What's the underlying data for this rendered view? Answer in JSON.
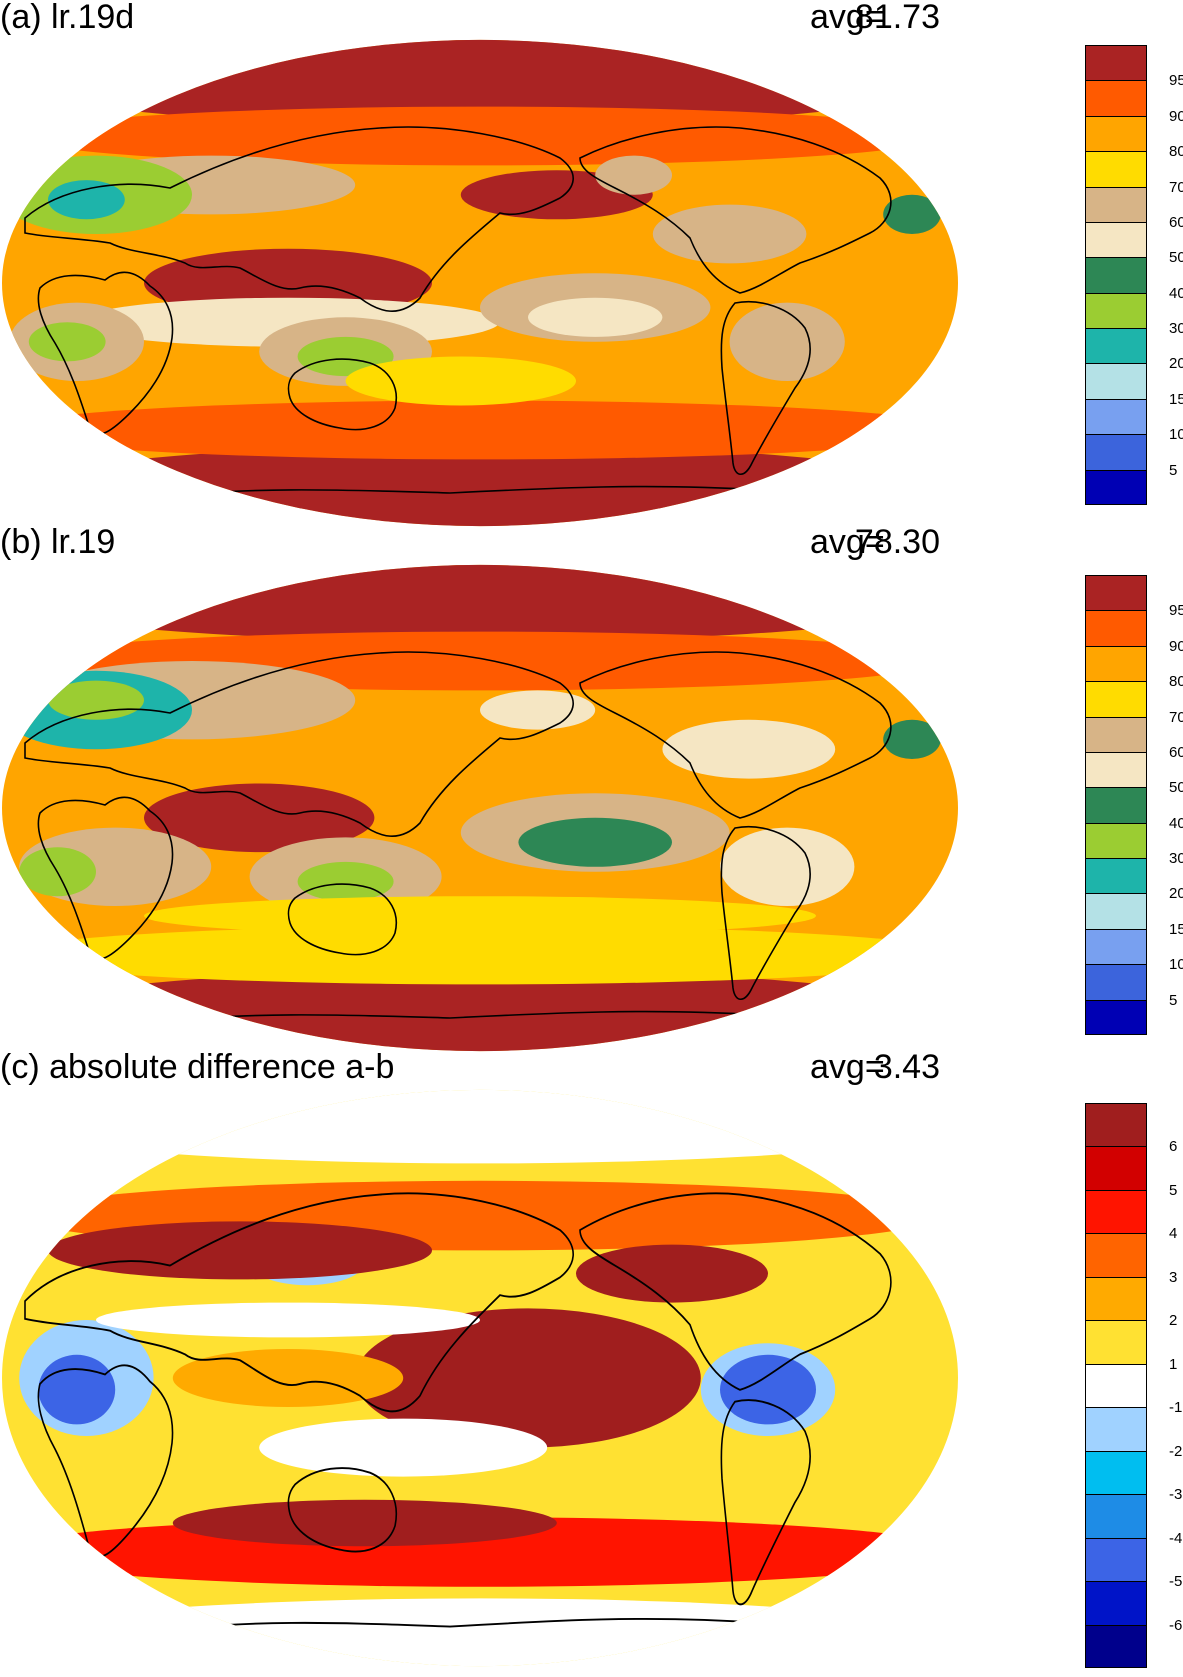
{
  "panels": [
    {
      "id": "a",
      "title": "(a) lr.19d",
      "avg_label": "avg=",
      "avg_value": "81.73",
      "colorbar": {
        "colors": [
          "#0000b4",
          "#3c64dc",
          "#78a0f0",
          "#b4e1e6",
          "#1eb4aa",
          "#9bcd32",
          "#2d8755",
          "#f5e6c3",
          "#d7b487",
          "#ffdc00",
          "#ffa500",
          "#ff5a00",
          "#aa2323"
        ],
        "labels": [
          "5",
          "10",
          "15",
          "20",
          "30",
          "40",
          "50",
          "60",
          "70",
          "80",
          "90",
          "95"
        ]
      }
    },
    {
      "id": "b",
      "title": "(b) lr.19",
      "avg_label": "avg=",
      "avg_value": "78.30",
      "colorbar": {
        "colors": [
          "#0000b4",
          "#3c64dc",
          "#78a0f0",
          "#b4e1e6",
          "#1eb4aa",
          "#9bcd32",
          "#2d8755",
          "#f5e6c3",
          "#d7b487",
          "#ffdc00",
          "#ffa500",
          "#ff5a00",
          "#aa2323"
        ],
        "labels": [
          "5",
          "10",
          "15",
          "20",
          "30",
          "40",
          "50",
          "60",
          "70",
          "80",
          "90",
          "95"
        ]
      }
    },
    {
      "id": "c",
      "title": "(c) absolute difference a-b",
      "avg_label": "avg=",
      "avg_value": "3.43",
      "colorbar": {
        "colors": [
          "#00008c",
          "#0014c8",
          "#3c64e6",
          "#1e8ce6",
          "#00bef0",
          "#a0d2ff",
          "#ffffff",
          "#ffe132",
          "#ffaa00",
          "#ff6400",
          "#ff1400",
          "#d20000",
          "#a01e1e"
        ],
        "labels": [
          "-6",
          "-5",
          "-4",
          "-3",
          "-2",
          "-1",
          "1",
          "2",
          "3",
          "4",
          "5",
          "6"
        ]
      }
    }
  ]
}
